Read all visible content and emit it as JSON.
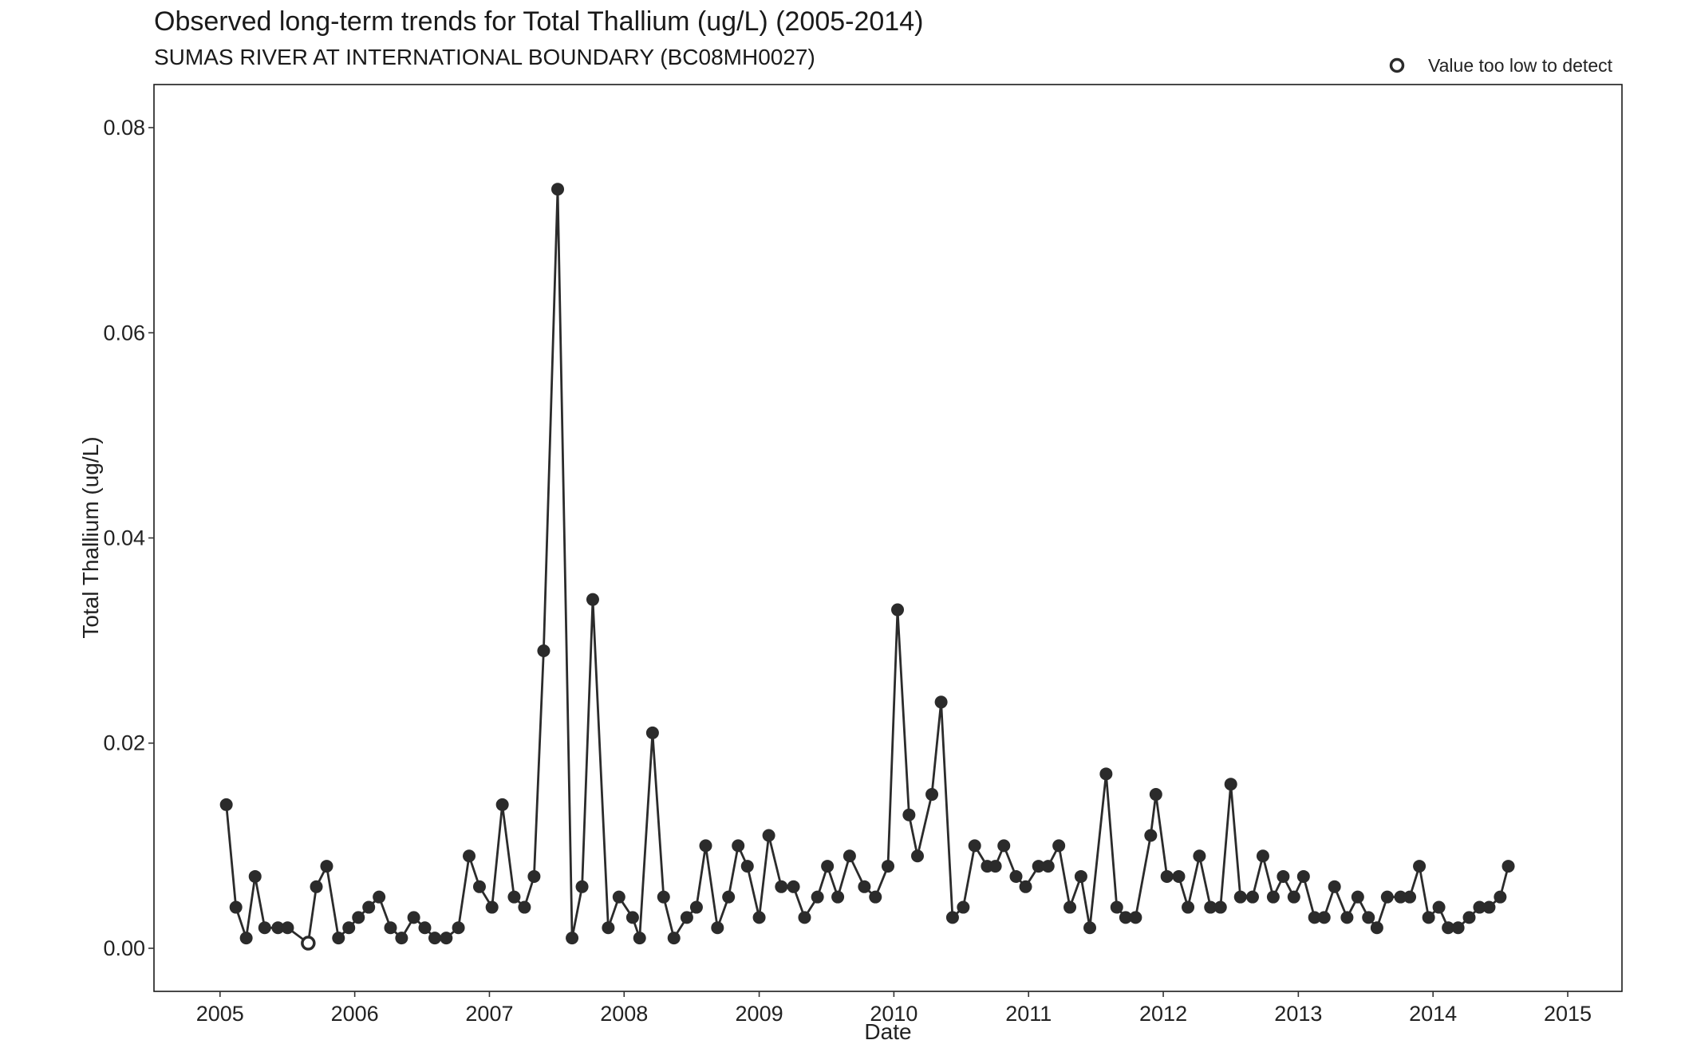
{
  "chart_data": {
    "type": "line",
    "title": "Observed long-term trends for Total Thallium (ug/L) (2005-2014)",
    "subtitle": "SUMAS RIVER AT INTERNATIONAL BOUNDARY (BC08MH0027)",
    "xlabel": "Date",
    "ylabel": "Total Thallium (ug/L)",
    "x_axis": {
      "type": "date",
      "range": [
        "2004-07-06",
        "2015-05-28"
      ],
      "ticks": [
        "2005",
        "2006",
        "2007",
        "2008",
        "2009",
        "2010",
        "2011",
        "2012",
        "2013",
        "2014",
        "2015"
      ]
    },
    "y_axis": {
      "range": [
        -0.0042,
        0.0842
      ],
      "ticks": [
        {
          "value": 0.0,
          "label": "0.00"
        },
        {
          "value": 0.02,
          "label": "0.02"
        },
        {
          "value": 0.04,
          "label": "0.04"
        },
        {
          "value": 0.06,
          "label": "0.06"
        },
        {
          "value": 0.08,
          "label": "0.08"
        }
      ]
    },
    "grid": false,
    "legend": {
      "position": "top-right",
      "entries": [
        {
          "label": "Value too low to detect",
          "marker": "open-circle"
        }
      ]
    },
    "series": [
      {
        "color": "#2b2b2b",
        "points": [
          {
            "x": "2005-01-18",
            "y": 0.014
          },
          {
            "x": "2005-02-13",
            "y": 0.004
          },
          {
            "x": "2005-03-13",
            "y": 0.001
          },
          {
            "x": "2005-04-06",
            "y": 0.007
          },
          {
            "x": "2005-05-02",
            "y": 0.002
          },
          {
            "x": "2005-06-07",
            "y": 0.002
          },
          {
            "x": "2005-07-03",
            "y": 0.002
          },
          {
            "x": "2005-08-28",
            "y": 0.0005,
            "below_detection": true
          },
          {
            "x": "2005-09-19",
            "y": 0.006
          },
          {
            "x": "2005-10-17",
            "y": 0.008
          },
          {
            "x": "2005-11-18",
            "y": 0.001
          },
          {
            "x": "2005-12-16",
            "y": 0.002
          },
          {
            "x": "2006-01-11",
            "y": 0.003
          },
          {
            "x": "2006-02-08",
            "y": 0.004
          },
          {
            "x": "2006-03-08",
            "y": 0.005
          },
          {
            "x": "2006-04-08",
            "y": 0.002
          },
          {
            "x": "2006-05-08",
            "y": 0.001
          },
          {
            "x": "2006-06-10",
            "y": 0.003
          },
          {
            "x": "2006-07-10",
            "y": 0.002
          },
          {
            "x": "2006-08-06",
            "y": 0.001
          },
          {
            "x": "2006-09-06",
            "y": 0.001
          },
          {
            "x": "2006-10-09",
            "y": 0.002
          },
          {
            "x": "2006-11-07",
            "y": 0.009
          },
          {
            "x": "2006-12-05",
            "y": 0.006
          },
          {
            "x": "2007-01-08",
            "y": 0.004
          },
          {
            "x": "2007-02-05",
            "y": 0.014
          },
          {
            "x": "2007-03-09",
            "y": 0.005
          },
          {
            "x": "2007-04-06",
            "y": 0.004
          },
          {
            "x": "2007-05-02",
            "y": 0.007
          },
          {
            "x": "2007-05-28",
            "y": 0.029
          },
          {
            "x": "2007-07-05",
            "y": 0.074
          },
          {
            "x": "2007-08-13",
            "y": 0.001
          },
          {
            "x": "2007-09-09",
            "y": 0.006
          },
          {
            "x": "2007-10-08",
            "y": 0.034
          },
          {
            "x": "2007-11-19",
            "y": 0.002
          },
          {
            "x": "2007-12-18",
            "y": 0.005
          },
          {
            "x": "2008-01-24",
            "y": 0.003
          },
          {
            "x": "2008-02-12",
            "y": 0.001
          },
          {
            "x": "2008-03-18",
            "y": 0.021
          },
          {
            "x": "2008-04-17",
            "y": 0.005
          },
          {
            "x": "2008-05-15",
            "y": 0.001
          },
          {
            "x": "2008-06-19",
            "y": 0.003
          },
          {
            "x": "2008-07-15",
            "y": 0.004
          },
          {
            "x": "2008-08-09",
            "y": 0.01
          },
          {
            "x": "2008-09-10",
            "y": 0.002
          },
          {
            "x": "2008-10-10",
            "y": 0.005
          },
          {
            "x": "2008-11-05",
            "y": 0.01
          },
          {
            "x": "2008-11-30",
            "y": 0.008
          },
          {
            "x": "2009-01-01",
            "y": 0.003
          },
          {
            "x": "2009-01-27",
            "y": 0.011
          },
          {
            "x": "2009-03-02",
            "y": 0.006
          },
          {
            "x": "2009-04-04",
            "y": 0.006
          },
          {
            "x": "2009-05-04",
            "y": 0.003
          },
          {
            "x": "2009-06-08",
            "y": 0.005
          },
          {
            "x": "2009-07-05",
            "y": 0.008
          },
          {
            "x": "2009-08-02",
            "y": 0.005
          },
          {
            "x": "2009-09-03",
            "y": 0.009
          },
          {
            "x": "2009-10-13",
            "y": 0.006
          },
          {
            "x": "2009-11-12",
            "y": 0.005
          },
          {
            "x": "2009-12-16",
            "y": 0.008
          },
          {
            "x": "2010-01-11",
            "y": 0.033
          },
          {
            "x": "2010-02-11",
            "y": 0.013
          },
          {
            "x": "2010-03-06",
            "y": 0.009
          },
          {
            "x": "2010-04-14",
            "y": 0.015
          },
          {
            "x": "2010-05-09",
            "y": 0.024
          },
          {
            "x": "2010-06-09",
            "y": 0.003
          },
          {
            "x": "2010-07-08",
            "y": 0.004
          },
          {
            "x": "2010-08-08",
            "y": 0.01
          },
          {
            "x": "2010-09-11",
            "y": 0.008
          },
          {
            "x": "2010-10-03",
            "y": 0.008
          },
          {
            "x": "2010-10-26",
            "y": 0.01
          },
          {
            "x": "2010-11-28",
            "y": 0.007
          },
          {
            "x": "2010-12-24",
            "y": 0.006
          },
          {
            "x": "2011-01-28",
            "y": 0.008
          },
          {
            "x": "2011-02-23",
            "y": 0.008
          },
          {
            "x": "2011-03-24",
            "y": 0.01
          },
          {
            "x": "2011-04-23",
            "y": 0.004
          },
          {
            "x": "2011-05-23",
            "y": 0.007
          },
          {
            "x": "2011-06-16",
            "y": 0.002
          },
          {
            "x": "2011-07-30",
            "y": 0.017
          },
          {
            "x": "2011-08-28",
            "y": 0.004
          },
          {
            "x": "2011-09-21",
            "y": 0.003
          },
          {
            "x": "2011-10-18",
            "y": 0.003
          },
          {
            "x": "2011-11-28",
            "y": 0.011
          },
          {
            "x": "2011-12-12",
            "y": 0.015
          },
          {
            "x": "2012-01-11",
            "y": 0.007
          },
          {
            "x": "2012-02-12",
            "y": 0.007
          },
          {
            "x": "2012-03-08",
            "y": 0.004
          },
          {
            "x": "2012-04-08",
            "y": 0.009
          },
          {
            "x": "2012-05-08",
            "y": 0.004
          },
          {
            "x": "2012-06-04",
            "y": 0.004
          },
          {
            "x": "2012-07-02",
            "y": 0.016
          },
          {
            "x": "2012-07-28",
            "y": 0.005
          },
          {
            "x": "2012-08-30",
            "y": 0.005
          },
          {
            "x": "2012-09-27",
            "y": 0.009
          },
          {
            "x": "2012-10-25",
            "y": 0.005
          },
          {
            "x": "2012-11-21",
            "y": 0.007
          },
          {
            "x": "2012-12-20",
            "y": 0.005
          },
          {
            "x": "2013-01-15",
            "y": 0.007
          },
          {
            "x": "2013-02-14",
            "y": 0.003
          },
          {
            "x": "2013-03-12",
            "y": 0.003
          },
          {
            "x": "2013-04-09",
            "y": 0.006
          },
          {
            "x": "2013-05-13",
            "y": 0.003
          },
          {
            "x": "2013-06-11",
            "y": 0.005
          },
          {
            "x": "2013-07-10",
            "y": 0.003
          },
          {
            "x": "2013-08-02",
            "y": 0.002
          },
          {
            "x": "2013-08-30",
            "y": 0.005
          },
          {
            "x": "2013-10-05",
            "y": 0.005
          },
          {
            "x": "2013-10-30",
            "y": 0.005
          },
          {
            "x": "2013-11-25",
            "y": 0.008
          },
          {
            "x": "2013-12-20",
            "y": 0.003
          },
          {
            "x": "2014-01-17",
            "y": 0.004
          },
          {
            "x": "2014-02-11",
            "y": 0.002
          },
          {
            "x": "2014-03-10",
            "y": 0.002
          },
          {
            "x": "2014-04-09",
            "y": 0.003
          },
          {
            "x": "2014-05-07",
            "y": 0.004
          },
          {
            "x": "2014-06-02",
            "y": 0.004
          },
          {
            "x": "2014-07-02",
            "y": 0.005
          },
          {
            "x": "2014-07-24",
            "y": 0.008
          }
        ]
      }
    ]
  }
}
